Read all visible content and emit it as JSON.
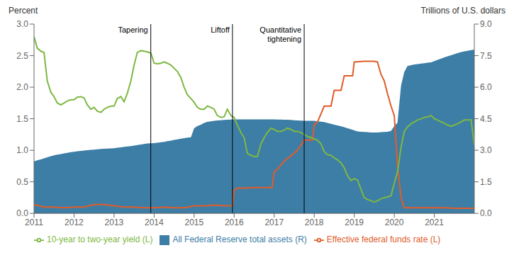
{
  "chart_data": {
    "type": "line",
    "ylabel": "Percent",
    "y2label": "Trillions of U.S. dollars",
    "xlim": [
      2011.0,
      2022.0
    ],
    "xticks": [
      2011,
      2012,
      2013,
      2014,
      2015,
      2016,
      2017,
      2018,
      2019,
      2020,
      2021
    ],
    "ylim": [
      0.0,
      3.0
    ],
    "yticks": [
      {
        "value": 0,
        "label": "0.0"
      },
      0.5,
      {
        "value": 1,
        "label": "1.0"
      },
      1.5,
      {
        "value": 2,
        "label": "2.0"
      },
      2.5,
      {
        "value": 3,
        "label": "3.0"
      }
    ],
    "y2lim": [
      0.0,
      9.0
    ],
    "y2ticks": [
      {
        "value": 0,
        "label": "0.0"
      },
      1.5,
      {
        "value": 3,
        "label": "3.0"
      },
      4.5,
      {
        "value": 6,
        "label": "6.0"
      },
      7.5,
      {
        "value": 9,
        "label": "9.0"
      }
    ],
    "grid": false,
    "legend": "bottom",
    "annotations": [
      {
        "x": 2013.917,
        "label": "Tapering"
      },
      {
        "x": 2015.958,
        "label": "Liftoff"
      },
      {
        "x": 2017.75,
        "label": "Quantitative\ntightening"
      }
    ],
    "series": [
      {
        "name": "All Federal Reserve total assets (R)",
        "type": "area",
        "axis": "y2",
        "color": "#3d7ea6",
        "x": [
          2011.0,
          2011.08,
          2011.17,
          2011.25,
          2011.33,
          2011.42,
          2011.5,
          2011.58,
          2011.67,
          2011.75,
          2011.83,
          2011.92,
          2012.0,
          2012.08,
          2012.17,
          2012.25,
          2012.33,
          2012.42,
          2012.5,
          2012.58,
          2012.67,
          2012.75,
          2012.83,
          2012.92,
          2013.0,
          2013.08,
          2013.17,
          2013.25,
          2013.33,
          2013.42,
          2013.5,
          2013.58,
          2013.67,
          2013.75,
          2013.83,
          2013.92,
          2014.0,
          2014.08,
          2014.17,
          2014.25,
          2014.33,
          2014.42,
          2014.5,
          2014.58,
          2014.67,
          2014.75,
          2014.83,
          2014.92,
          2015.0,
          2015.08,
          2015.17,
          2015.25,
          2015.33,
          2015.42,
          2015.5,
          2015.58,
          2015.67,
          2015.75,
          2015.83,
          2015.92,
          2016.0,
          2016.08,
          2016.17,
          2016.25,
          2016.33,
          2016.42,
          2016.5,
          2016.58,
          2016.67,
          2016.75,
          2016.83,
          2016.92,
          2017.0,
          2017.08,
          2017.17,
          2017.25,
          2017.33,
          2017.42,
          2017.5,
          2017.58,
          2017.67,
          2017.75,
          2017.83,
          2017.92,
          2018.0,
          2018.08,
          2018.17,
          2018.25,
          2018.33,
          2018.42,
          2018.5,
          2018.58,
          2018.67,
          2018.75,
          2018.83,
          2018.92,
          2019.0,
          2019.08,
          2019.17,
          2019.25,
          2019.33,
          2019.42,
          2019.5,
          2019.58,
          2019.67,
          2019.75,
          2019.83,
          2019.92,
          2020.0,
          2020.08,
          2020.17,
          2020.25,
          2020.33,
          2020.42,
          2020.5,
          2020.58,
          2020.67,
          2020.75,
          2020.83,
          2020.92,
          2021.0,
          2021.08,
          2021.17,
          2021.25,
          2021.33,
          2021.42,
          2021.5,
          2021.58,
          2021.67,
          2021.75,
          2021.83,
          2021.92,
          2022.0
        ],
        "values": [
          2.47,
          2.52,
          2.57,
          2.62,
          2.67,
          2.72,
          2.76,
          2.79,
          2.82,
          2.85,
          2.88,
          2.91,
          2.93,
          2.95,
          2.97,
          2.99,
          3.0,
          3.02,
          3.03,
          3.05,
          3.06,
          3.07,
          3.08,
          3.09,
          3.1,
          3.12,
          3.14,
          3.16,
          3.18,
          3.2,
          3.22,
          3.25,
          3.27,
          3.3,
          3.32,
          3.33,
          3.34,
          3.36,
          3.38,
          3.4,
          3.43,
          3.46,
          3.49,
          3.52,
          3.55,
          3.58,
          3.6,
          3.62,
          4.05,
          4.15,
          4.22,
          4.3,
          4.35,
          4.38,
          4.4,
          4.42,
          4.43,
          4.44,
          4.45,
          4.46,
          4.47,
          4.47,
          4.47,
          4.47,
          4.47,
          4.47,
          4.47,
          4.47,
          4.47,
          4.47,
          4.47,
          4.47,
          4.47,
          4.46,
          4.46,
          4.45,
          4.45,
          4.44,
          4.43,
          4.42,
          4.41,
          4.4,
          4.4,
          4.4,
          4.4,
          4.38,
          4.36,
          4.34,
          4.3,
          4.26,
          4.22,
          4.18,
          4.14,
          4.1,
          4.05,
          4.0,
          3.95,
          3.9,
          3.88,
          3.87,
          3.86,
          3.85,
          3.85,
          3.85,
          3.86,
          3.87,
          3.88,
          3.92,
          4.15,
          4.3,
          6.08,
          6.72,
          7.0,
          7.05,
          7.08,
          7.1,
          7.12,
          7.14,
          7.16,
          7.18,
          7.24,
          7.3,
          7.36,
          7.42,
          7.47,
          7.52,
          7.57,
          7.62,
          7.67,
          7.7,
          7.73,
          7.76,
          7.79
        ]
      },
      {
        "name": "Effective federal funds rate (L)",
        "type": "line",
        "axis": "y",
        "color": "#e05c2a",
        "x": [
          2011.0,
          2011.25,
          2011.5,
          2011.75,
          2012.0,
          2012.25,
          2012.5,
          2012.75,
          2013.0,
          2013.25,
          2013.5,
          2013.75,
          2014.0,
          2014.25,
          2014.5,
          2014.75,
          2015.0,
          2015.25,
          2015.5,
          2015.75,
          2015.96,
          2016.0,
          2016.083,
          2016.25,
          2016.5,
          2016.75,
          2016.95,
          2017.0,
          2017.083,
          2017.25,
          2017.417,
          2017.58,
          2017.75,
          2017.96,
          2018.0,
          2018.083,
          2018.25,
          2018.42,
          2018.5,
          2018.67,
          2018.75,
          2018.96,
          2019.0,
          2019.25,
          2019.5,
          2019.58,
          2019.67,
          2019.75,
          2019.83,
          2019.92,
          2020.0,
          2020.083,
          2020.17,
          2020.25,
          2020.5,
          2020.75,
          2021.0,
          2021.25,
          2021.5,
          2021.75,
          2022.0
        ],
        "values": [
          0.14,
          0.1,
          0.1,
          0.09,
          0.1,
          0.1,
          0.14,
          0.14,
          0.12,
          0.1,
          0.1,
          0.09,
          0.09,
          0.1,
          0.09,
          0.09,
          0.12,
          0.12,
          0.13,
          0.12,
          0.12,
          0.37,
          0.4,
          0.4,
          0.41,
          0.41,
          0.41,
          0.66,
          0.7,
          0.83,
          0.91,
          1.0,
          1.16,
          1.16,
          1.41,
          1.45,
          1.7,
          1.7,
          1.95,
          1.95,
          2.18,
          2.18,
          2.4,
          2.41,
          2.41,
          2.4,
          2.2,
          2.1,
          1.9,
          1.7,
          1.55,
          0.75,
          0.25,
          0.09,
          0.09,
          0.09,
          0.09,
          0.09,
          0.08,
          0.08,
          0.08
        ]
      },
      {
        "name": "10-year to two-year yield (L)",
        "type": "line",
        "axis": "y",
        "color": "#7db843",
        "x": [
          2011.0,
          2011.08,
          2011.17,
          2011.25,
          2011.33,
          2011.42,
          2011.5,
          2011.58,
          2011.67,
          2011.75,
          2011.83,
          2011.92,
          2012.0,
          2012.08,
          2012.17,
          2012.25,
          2012.33,
          2012.42,
          2012.5,
          2012.58,
          2012.67,
          2012.75,
          2012.83,
          2012.92,
          2013.0,
          2013.08,
          2013.17,
          2013.25,
          2013.33,
          2013.42,
          2013.5,
          2013.58,
          2013.67,
          2013.75,
          2013.83,
          2013.92,
          2014.0,
          2014.08,
          2014.17,
          2014.25,
          2014.33,
          2014.42,
          2014.5,
          2014.58,
          2014.67,
          2014.75,
          2014.83,
          2014.92,
          2015.0,
          2015.08,
          2015.17,
          2015.25,
          2015.33,
          2015.42,
          2015.5,
          2015.58,
          2015.67,
          2015.75,
          2015.83,
          2015.92,
          2016.0,
          2016.08,
          2016.17,
          2016.25,
          2016.33,
          2016.42,
          2016.5,
          2016.58,
          2016.67,
          2016.75,
          2016.83,
          2016.92,
          2017.0,
          2017.08,
          2017.17,
          2017.25,
          2017.33,
          2017.42,
          2017.5,
          2017.58,
          2017.67,
          2017.75,
          2017.83,
          2017.92,
          2018.0,
          2018.08,
          2018.17,
          2018.25,
          2018.33,
          2018.42,
          2018.5,
          2018.58,
          2018.67,
          2018.75,
          2018.83,
          2018.92,
          2019.0,
          2019.08,
          2019.17,
          2019.25,
          2019.33,
          2019.42,
          2019.5,
          2019.58,
          2019.67,
          2019.75,
          2019.83,
          2019.92,
          2020.0,
          2020.08,
          2020.17,
          2020.25,
          2020.33,
          2020.42,
          2020.5,
          2020.58,
          2020.67,
          2020.75,
          2020.83,
          2020.92,
          2021.0,
          2021.08,
          2021.17,
          2021.25,
          2021.33,
          2021.42,
          2021.5,
          2021.58,
          2021.67,
          2021.75,
          2021.83,
          2021.92,
          2022.0
        ],
        "values": [
          2.8,
          2.62,
          2.57,
          2.55,
          2.1,
          1.92,
          1.85,
          1.75,
          1.72,
          1.75,
          1.78,
          1.8,
          1.8,
          1.84,
          1.85,
          1.83,
          1.72,
          1.65,
          1.68,
          1.62,
          1.6,
          1.65,
          1.68,
          1.7,
          1.7,
          1.82,
          1.85,
          1.77,
          1.9,
          2.1,
          2.35,
          2.55,
          2.58,
          2.57,
          2.56,
          2.54,
          2.38,
          2.37,
          2.38,
          2.4,
          2.38,
          2.35,
          2.3,
          2.25,
          2.15,
          2.0,
          1.88,
          1.82,
          1.76,
          1.68,
          1.65,
          1.65,
          1.7,
          1.68,
          1.65,
          1.55,
          1.52,
          1.53,
          1.65,
          1.55,
          1.52,
          1.4,
          1.28,
          1.2,
          0.95,
          0.92,
          0.9,
          0.9,
          1.1,
          1.2,
          1.28,
          1.35,
          1.33,
          1.3,
          1.3,
          1.32,
          1.35,
          1.33,
          1.3,
          1.3,
          1.28,
          1.25,
          1.22,
          1.2,
          1.18,
          1.16,
          1.1,
          0.98,
          0.93,
          0.92,
          0.88,
          0.85,
          0.8,
          0.72,
          0.6,
          0.52,
          0.55,
          0.53,
          0.38,
          0.25,
          0.22,
          0.2,
          0.18,
          0.2,
          0.23,
          0.25,
          0.26,
          0.28,
          0.48,
          0.65,
          1.05,
          1.3,
          1.37,
          1.42,
          1.45,
          1.48,
          1.5,
          1.52,
          1.53,
          1.55,
          1.5,
          1.48,
          1.45,
          1.43,
          1.4,
          1.38,
          1.4,
          1.42,
          1.45,
          1.48,
          1.48,
          1.48,
          1.08
        ]
      }
    ]
  }
}
